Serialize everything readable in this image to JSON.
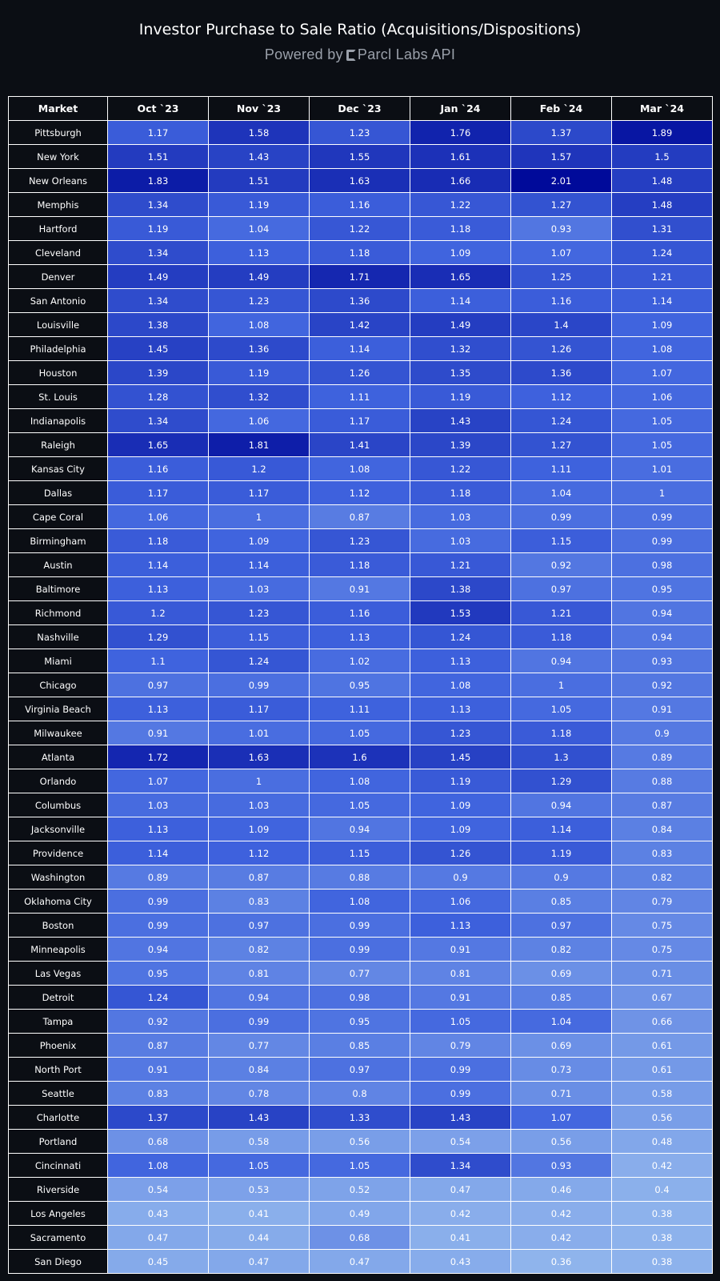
{
  "chart_data": {
    "type": "heatmap",
    "title": "Investor Purchase to Sale Ratio (Acquisitions/Dispositions)",
    "subtitle_text": "Powered by",
    "brand_text": "Parcl Labs API",
    "row_header": "Market",
    "columns": [
      "Oct `23",
      "Nov `23",
      "Dec `23",
      "Jan `24",
      "Feb `24",
      "Mar `24"
    ],
    "color_scale": {
      "low": "#8fb4ec",
      "mid": "#3f63de",
      "high": "#000a9a",
      "min": 0.36,
      "max": 2.01
    },
    "rows": [
      {
        "market": "Pittsburgh",
        "values": [
          "1.17",
          "1.58",
          "1.23",
          "1.76",
          "1.37",
          "1.89"
        ]
      },
      {
        "market": "New York",
        "values": [
          "1.51",
          "1.43",
          "1.55",
          "1.61",
          "1.57",
          "1.5"
        ]
      },
      {
        "market": "New Orleans",
        "values": [
          "1.83",
          "1.51",
          "1.63",
          "1.66",
          "2.01",
          "1.48"
        ]
      },
      {
        "market": "Memphis",
        "values": [
          "1.34",
          "1.19",
          "1.16",
          "1.22",
          "1.27",
          "1.48"
        ]
      },
      {
        "market": "Hartford",
        "values": [
          "1.19",
          "1.04",
          "1.22",
          "1.18",
          "0.93",
          "1.31"
        ]
      },
      {
        "market": "Cleveland",
        "values": [
          "1.34",
          "1.13",
          "1.18",
          "1.09",
          "1.07",
          "1.24"
        ]
      },
      {
        "market": "Denver",
        "values": [
          "1.49",
          "1.49",
          "1.71",
          "1.65",
          "1.25",
          "1.21"
        ]
      },
      {
        "market": "San Antonio",
        "values": [
          "1.34",
          "1.23",
          "1.36",
          "1.14",
          "1.16",
          "1.14"
        ]
      },
      {
        "market": "Louisville",
        "values": [
          "1.38",
          "1.08",
          "1.42",
          "1.49",
          "1.4",
          "1.09"
        ]
      },
      {
        "market": "Philadelphia",
        "values": [
          "1.45",
          "1.36",
          "1.14",
          "1.32",
          "1.26",
          "1.08"
        ]
      },
      {
        "market": "Houston",
        "values": [
          "1.39",
          "1.19",
          "1.26",
          "1.35",
          "1.36",
          "1.07"
        ]
      },
      {
        "market": "St. Louis",
        "values": [
          "1.28",
          "1.32",
          "1.11",
          "1.19",
          "1.12",
          "1.06"
        ]
      },
      {
        "market": "Indianapolis",
        "values": [
          "1.34",
          "1.06",
          "1.17",
          "1.43",
          "1.24",
          "1.05"
        ]
      },
      {
        "market": "Raleigh",
        "values": [
          "1.65",
          "1.81",
          "1.41",
          "1.39",
          "1.27",
          "1.05"
        ]
      },
      {
        "market": "Kansas City",
        "values": [
          "1.16",
          "1.2",
          "1.08",
          "1.22",
          "1.11",
          "1.01"
        ]
      },
      {
        "market": "Dallas",
        "values": [
          "1.17",
          "1.17",
          "1.12",
          "1.18",
          "1.04",
          "1"
        ]
      },
      {
        "market": "Cape Coral",
        "values": [
          "1.06",
          "1",
          "0.87",
          "1.03",
          "0.99",
          "0.99"
        ]
      },
      {
        "market": "Birmingham",
        "values": [
          "1.18",
          "1.09",
          "1.23",
          "1.03",
          "1.15",
          "0.99"
        ]
      },
      {
        "market": "Austin",
        "values": [
          "1.14",
          "1.14",
          "1.18",
          "1.21",
          "0.92",
          "0.98"
        ]
      },
      {
        "market": "Baltimore",
        "values": [
          "1.13",
          "1.03",
          "0.91",
          "1.38",
          "0.97",
          "0.95"
        ]
      },
      {
        "market": "Richmond",
        "values": [
          "1.2",
          "1.23",
          "1.16",
          "1.53",
          "1.21",
          "0.94"
        ]
      },
      {
        "market": "Nashville",
        "values": [
          "1.29",
          "1.15",
          "1.13",
          "1.24",
          "1.18",
          "0.94"
        ]
      },
      {
        "market": "Miami",
        "values": [
          "1.1",
          "1.24",
          "1.02",
          "1.13",
          "0.94",
          "0.93"
        ]
      },
      {
        "market": "Chicago",
        "values": [
          "0.97",
          "0.99",
          "0.95",
          "1.08",
          "1",
          "0.92"
        ]
      },
      {
        "market": "Virginia Beach",
        "values": [
          "1.13",
          "1.17",
          "1.11",
          "1.13",
          "1.05",
          "0.91"
        ]
      },
      {
        "market": "Milwaukee",
        "values": [
          "0.91",
          "1.01",
          "1.05",
          "1.23",
          "1.18",
          "0.9"
        ]
      },
      {
        "market": "Atlanta",
        "values": [
          "1.72",
          "1.63",
          "1.6",
          "1.45",
          "1.3",
          "0.89"
        ]
      },
      {
        "market": "Orlando",
        "values": [
          "1.07",
          "1",
          "1.08",
          "1.19",
          "1.29",
          "0.88"
        ]
      },
      {
        "market": "Columbus",
        "values": [
          "1.03",
          "1.03",
          "1.05",
          "1.09",
          "0.94",
          "0.87"
        ]
      },
      {
        "market": "Jacksonville",
        "values": [
          "1.13",
          "1.09",
          "0.94",
          "1.09",
          "1.14",
          "0.84"
        ]
      },
      {
        "market": "Providence",
        "values": [
          "1.14",
          "1.12",
          "1.15",
          "1.26",
          "1.19",
          "0.83"
        ]
      },
      {
        "market": "Washington",
        "values": [
          "0.89",
          "0.87",
          "0.88",
          "0.9",
          "0.9",
          "0.82"
        ]
      },
      {
        "market": "Oklahoma City",
        "values": [
          "0.99",
          "0.83",
          "1.08",
          "1.06",
          "0.85",
          "0.79"
        ]
      },
      {
        "market": "Boston",
        "values": [
          "0.99",
          "0.97",
          "0.99",
          "1.13",
          "0.97",
          "0.75"
        ]
      },
      {
        "market": "Minneapolis",
        "values": [
          "0.94",
          "0.82",
          "0.99",
          "0.91",
          "0.82",
          "0.75"
        ]
      },
      {
        "market": "Las Vegas",
        "values": [
          "0.95",
          "0.81",
          "0.77",
          "0.81",
          "0.69",
          "0.71"
        ]
      },
      {
        "market": "Detroit",
        "values": [
          "1.24",
          "0.94",
          "0.98",
          "0.91",
          "0.85",
          "0.67"
        ]
      },
      {
        "market": "Tampa",
        "values": [
          "0.92",
          "0.99",
          "0.95",
          "1.05",
          "1.04",
          "0.66"
        ]
      },
      {
        "market": "Phoenix",
        "values": [
          "0.87",
          "0.77",
          "0.85",
          "0.79",
          "0.69",
          "0.61"
        ]
      },
      {
        "market": "North Port",
        "values": [
          "0.91",
          "0.84",
          "0.97",
          "0.99",
          "0.73",
          "0.61"
        ]
      },
      {
        "market": "Seattle",
        "values": [
          "0.83",
          "0.78",
          "0.8",
          "0.99",
          "0.71",
          "0.58"
        ]
      },
      {
        "market": "Charlotte",
        "values": [
          "1.37",
          "1.43",
          "1.33",
          "1.43",
          "1.07",
          "0.56"
        ]
      },
      {
        "market": "Portland",
        "values": [
          "0.68",
          "0.58",
          "0.56",
          "0.54",
          "0.56",
          "0.48"
        ]
      },
      {
        "market": "Cincinnati",
        "values": [
          "1.08",
          "1.05",
          "1.05",
          "1.34",
          "0.93",
          "0.42"
        ]
      },
      {
        "market": "Riverside",
        "values": [
          "0.54",
          "0.53",
          "0.52",
          "0.47",
          "0.46",
          "0.4"
        ]
      },
      {
        "market": "Los Angeles",
        "values": [
          "0.43",
          "0.41",
          "0.49",
          "0.42",
          "0.42",
          "0.38"
        ]
      },
      {
        "market": "Sacramento",
        "values": [
          "0.47",
          "0.44",
          "0.68",
          "0.41",
          "0.42",
          "0.38"
        ]
      },
      {
        "market": "San Diego",
        "values": [
          "0.45",
          "0.47",
          "0.47",
          "0.43",
          "0.36",
          "0.38"
        ]
      }
    ]
  }
}
